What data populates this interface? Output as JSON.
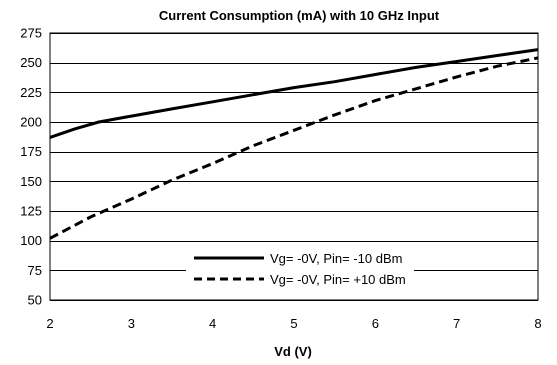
{
  "chart_data": {
    "type": "line",
    "title": "Current Consumption (mA) with 10 GHz Input",
    "xlabel": "Vd (V)",
    "ylabel": "",
    "xlim": [
      2,
      8
    ],
    "ylim": [
      50,
      275
    ],
    "xticks": [
      2,
      3,
      4,
      5,
      6,
      7,
      8
    ],
    "yticks": [
      50,
      75,
      100,
      125,
      150,
      175,
      200,
      225,
      250,
      275
    ],
    "grid": "horizontal",
    "legend_position": "bottom-center",
    "series": [
      {
        "name": "Vg= -0V, Pin= -10 dBm",
        "style": "solid",
        "color": "#000000",
        "x": [
          2,
          2.3,
          2.6,
          3,
          3.5,
          4,
          4.5,
          5,
          5.5,
          6,
          6.5,
          7,
          7.5,
          8
        ],
        "y": [
          187,
          194,
          200,
          205,
          211,
          217,
          223,
          229,
          234,
          240,
          246,
          251,
          256,
          261
        ]
      },
      {
        "name": "Vg= -0V, Pin= +10 dBm",
        "style": "dashed",
        "color": "#000000",
        "x": [
          2,
          2.5,
          3,
          3.5,
          4,
          4.5,
          5,
          5.5,
          6,
          6.5,
          7,
          7.5,
          8
        ],
        "y": [
          102,
          120,
          135,
          151,
          165,
          180,
          193,
          206,
          218,
          228,
          238,
          247,
          254
        ]
      }
    ]
  }
}
